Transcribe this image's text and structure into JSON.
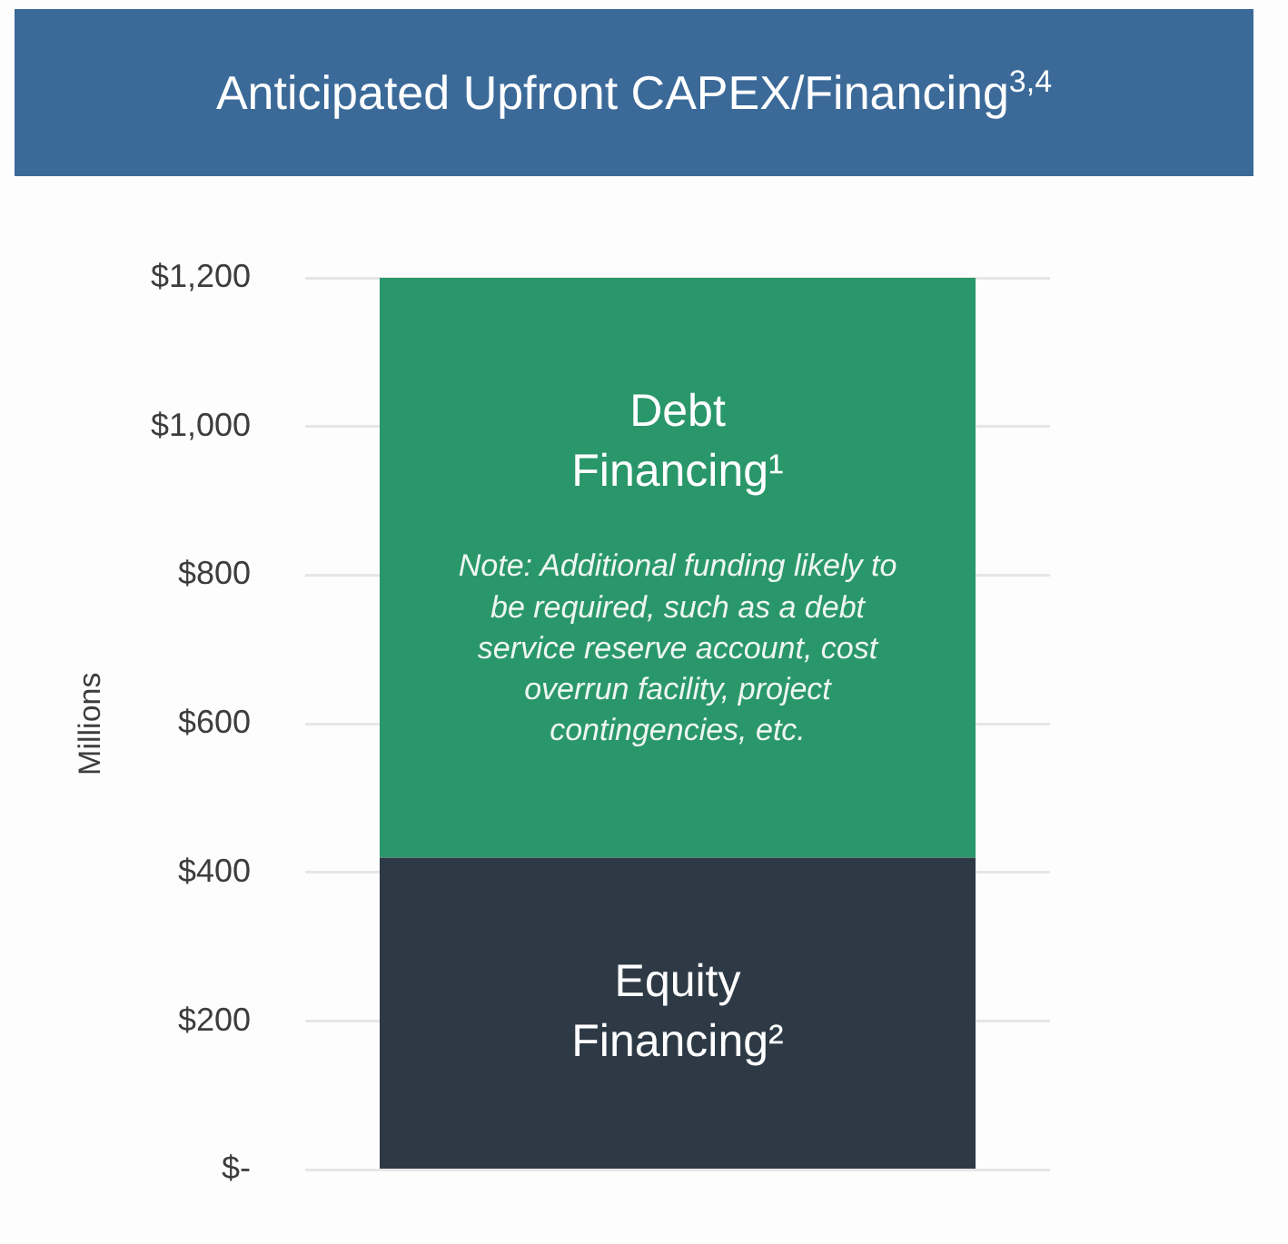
{
  "chart_data": {
    "type": "bar",
    "title": "Anticipated Upfront CAPEX/Financing$^{3,4}$",
    "ylabel": "Millions",
    "categories": [
      null
    ],
    "stacked": true,
    "series": [
      {
        "name": "Equity Financing²",
        "color": "#2d3a46",
        "values": [
          420
        ]
      },
      {
        "name": "Debt Financing¹",
        "color": "#2a976a",
        "values": [
          780
        ]
      }
    ],
    "ylim": [
      0,
      1200
    ],
    "yticks": [
      {
        "value": 0,
        "label": "$-"
      },
      {
        "value": 200,
        "label": "$200"
      },
      {
        "value": 400,
        "label": "$400"
      },
      {
        "value": 600,
        "label": "$600"
      },
      {
        "value": 800,
        "label": "$800"
      },
      {
        "value": 1000,
        "label": "$1,000"
      },
      {
        "value": 1200,
        "label": "$1,200"
      }
    ],
    "grid": "y",
    "legend": false,
    "tick_labels": "y",
    "annotations": [
      "Note: Additional funding likely to be required, such as a debt service reserve account, cost overrun facility, project contingencies, etc."
    ]
  }
}
